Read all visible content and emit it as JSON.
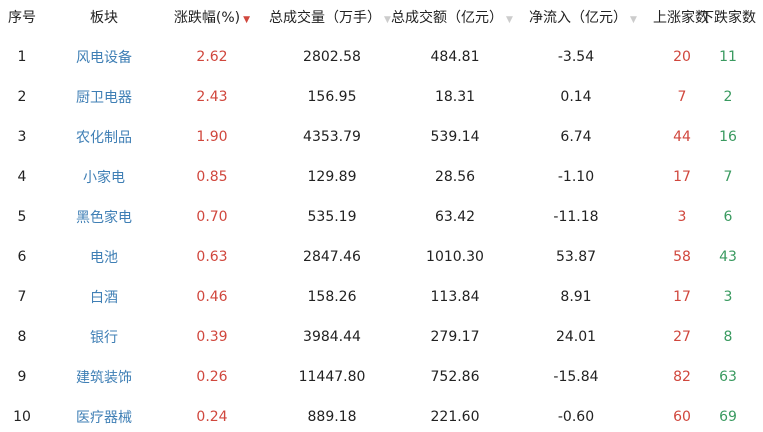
{
  "columns": [
    "序号",
    "板块",
    "涨跌幅(%)",
    "总成交量（万手）",
    "总成交额（亿元）",
    "净流入（亿元）",
    "上涨家数",
    "下跌家数"
  ],
  "sort_icons": {
    "active": "▼",
    "inactive": "▼"
  },
  "colors": {
    "up": "#d0473d",
    "down": "#3a9a60",
    "name": "#3f7fb5"
  },
  "rows": [
    {
      "rank": "1",
      "sector": "风电设备",
      "change": "2.62",
      "volume": "2802.58",
      "amount": "484.81",
      "inflow": "-3.54",
      "up": "20",
      "down": "11"
    },
    {
      "rank": "2",
      "sector": "厨卫电器",
      "change": "2.43",
      "volume": "156.95",
      "amount": "18.31",
      "inflow": "0.14",
      "up": "7",
      "down": "2"
    },
    {
      "rank": "3",
      "sector": "农化制品",
      "change": "1.90",
      "volume": "4353.79",
      "amount": "539.14",
      "inflow": "6.74",
      "up": "44",
      "down": "16"
    },
    {
      "rank": "4",
      "sector": "小家电",
      "change": "0.85",
      "volume": "129.89",
      "amount": "28.56",
      "inflow": "-1.10",
      "up": "17",
      "down": "7"
    },
    {
      "rank": "5",
      "sector": "黑色家电",
      "change": "0.70",
      "volume": "535.19",
      "amount": "63.42",
      "inflow": "-11.18",
      "up": "3",
      "down": "6"
    },
    {
      "rank": "6",
      "sector": "电池",
      "change": "0.63",
      "volume": "2847.46",
      "amount": "1010.30",
      "inflow": "53.87",
      "up": "58",
      "down": "43"
    },
    {
      "rank": "7",
      "sector": "白酒",
      "change": "0.46",
      "volume": "158.26",
      "amount": "113.84",
      "inflow": "8.91",
      "up": "17",
      "down": "3"
    },
    {
      "rank": "8",
      "sector": "银行",
      "change": "0.39",
      "volume": "3984.44",
      "amount": "279.17",
      "inflow": "24.01",
      "up": "27",
      "down": "8"
    },
    {
      "rank": "9",
      "sector": "建筑装饰",
      "change": "0.26",
      "volume": "11447.80",
      "amount": "752.86",
      "inflow": "-15.84",
      "up": "82",
      "down": "63"
    },
    {
      "rank": "10",
      "sector": "医疗器械",
      "change": "0.24",
      "volume": "889.18",
      "amount": "221.60",
      "inflow": "-0.60",
      "up": "60",
      "down": "69"
    }
  ]
}
